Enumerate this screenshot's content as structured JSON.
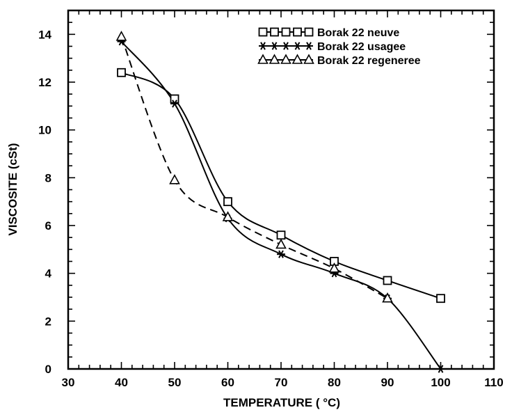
{
  "chart_data": {
    "type": "line",
    "xlabel": "TEMPERATURE ( °C)",
    "ylabel": "VISCOSITE (cSt)",
    "xlim": [
      30,
      110
    ],
    "ylim": [
      0,
      15
    ],
    "xticks": [
      30,
      40,
      50,
      60,
      70,
      80,
      90,
      100,
      110
    ],
    "yticks": [
      0,
      2,
      4,
      6,
      8,
      10,
      12,
      14
    ],
    "xtick_labels": [
      "30",
      "40",
      "50",
      "60",
      "70",
      "80",
      "90",
      "100",
      "110"
    ],
    "ytick_labels": [
      "0",
      "2",
      "4",
      "6",
      "8",
      "10",
      "12",
      "14"
    ],
    "grid": false,
    "legend_position": "top-right",
    "series": [
      {
        "name": "Borak 22 neuve",
        "legend_marks": "□□□□□",
        "marker": "square",
        "line_style": "solid",
        "x": [
          40,
          50,
          60,
          70,
          80,
          90,
          100
        ],
        "y": [
          12.4,
          11.3,
          7.0,
          5.6,
          4.5,
          3.7,
          2.95
        ]
      },
      {
        "name": "Borak 22 usagee",
        "legend_marks": "*****",
        "marker": "star",
        "line_style": "solid",
        "x": [
          40,
          50,
          60,
          70,
          80,
          90,
          100
        ],
        "y": [
          13.7,
          11.1,
          6.3,
          4.8,
          4.0,
          2.95,
          0.0
        ]
      },
      {
        "name": "Borak 22 regeneree",
        "legend_marks": "△△△△△",
        "marker": "triangle",
        "line_style": "dashed",
        "x": [
          40,
          50,
          60,
          70,
          80,
          90
        ],
        "y": [
          13.9,
          7.9,
          6.35,
          5.2,
          4.2,
          2.95
        ]
      }
    ]
  }
}
